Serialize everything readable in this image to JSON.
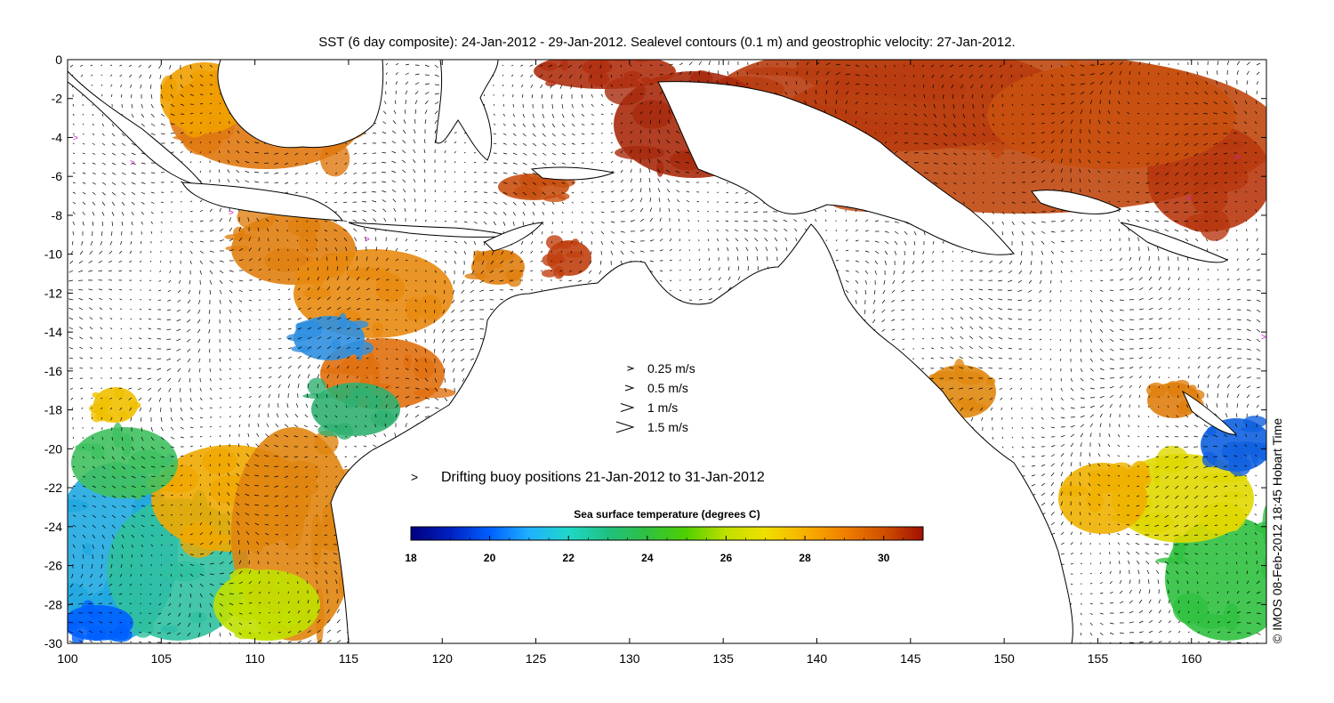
{
  "title": "SST (6 day composite): 24-Jan-2012 - 29-Jan-2012. Sealevel contours (0.1 m) and geostrophic velocity: 27-Jan-2012.",
  "credit": "© IMOS 08-Feb-2012 18:45 Hobart Time",
  "axes": {
    "x_ticks": [
      "100",
      "105",
      "110",
      "115",
      "120",
      "125",
      "130",
      "135",
      "140",
      "145",
      "150",
      "155",
      "160"
    ],
    "x_values": [
      100,
      105,
      110,
      115,
      120,
      125,
      130,
      135,
      140,
      145,
      150,
      155,
      160
    ],
    "y_ticks": [
      "0",
      "-2",
      "-4",
      "-6",
      "-8",
      "-10",
      "-12",
      "-14",
      "-16",
      "-18",
      "-20",
      "-22",
      "-24",
      "-26",
      "-28",
      "-30"
    ],
    "y_values": [
      0,
      -2,
      -4,
      -6,
      -8,
      -10,
      -12,
      -14,
      -16,
      -18,
      -20,
      -22,
      -24,
      -26,
      -28,
      -30
    ],
    "lon_range": [
      100,
      164
    ],
    "lat_range": [
      -30,
      0
    ]
  },
  "velocity_legend": [
    {
      "label": "0.25 m/s",
      "speed": 0.25
    },
    {
      "label": "0.5 m/s",
      "speed": 0.5
    },
    {
      "label": "1 m/s",
      "speed": 1
    },
    {
      "label": "1.5 m/s",
      "speed": 1.5
    }
  ],
  "buoy_legend": {
    "symbol": ">",
    "label": "Drifting buoy positions 21-Jan-2012 to 31-Jan-2012",
    "color": "#d020d0"
  },
  "colorbar": {
    "title": "Sea surface temperature (degrees C)",
    "min": 18,
    "max": 31,
    "ticks": [
      "18",
      "20",
      "22",
      "24",
      "26",
      "28",
      "30"
    ],
    "tick_values": [
      18,
      20,
      22,
      24,
      26,
      28,
      30
    ],
    "colors": [
      "#00007f",
      "#0020c0",
      "#0060ff",
      "#20b0ff",
      "#20d8c8",
      "#20c080",
      "#30c040",
      "#50d000",
      "#c0e000",
      "#f0e000",
      "#f8b000",
      "#f08000",
      "#d05000",
      "#a01000"
    ]
  },
  "land_color": "#ffffff",
  "coast_color": "#000000"
}
